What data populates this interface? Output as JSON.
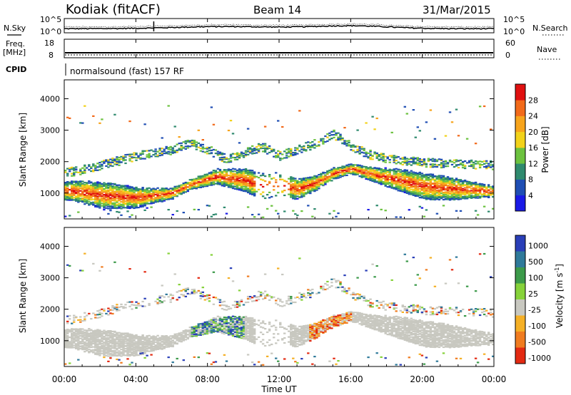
{
  "header": {
    "radar": "Kodiak (fitACF)",
    "beam": "Beam 14",
    "date": "31/Mar/2015"
  },
  "sky_panel": {
    "left_label": "N.Sky",
    "right_label": "N.Search",
    "left_ticks": [
      "10^5",
      "10^0"
    ],
    "right_ticks": [
      "10^5",
      "10^0"
    ]
  },
  "freq_panel": {
    "left_label_line1": "Freq.",
    "left_label_line2": "[MHz]",
    "right_label": "Nave",
    "left_ticks": [
      "18",
      "8"
    ],
    "right_ticks": [
      "60",
      "0"
    ]
  },
  "cpid_panel": {
    "label": "CPID",
    "text": "normalsound (fast) 157 RF"
  },
  "chart_data": [
    {
      "type": "heatmap",
      "title": "Power",
      "ylabel": "Slant Range [km]",
      "xlabel": "",
      "xlim": [
        "00:00",
        "24:00"
      ],
      "ylim": [
        180,
        4600
      ],
      "yticks": [
        1000,
        2000,
        3000,
        4000
      ],
      "colorbar": {
        "label": "Power [dB]",
        "ticks": [
          "4",
          "8",
          "12",
          "16",
          "20",
          "24",
          "28"
        ],
        "range": [
          0,
          32
        ],
        "colors": [
          "#1a1ae6",
          "#1f4eb4",
          "#2f8a6e",
          "#6cc23f",
          "#f2d21a",
          "#f7a41c",
          "#f26a1a",
          "#e01010"
        ]
      },
      "bands": [
        {
          "name": "main",
          "points": [
            [
              0.5,
              1100
            ],
            [
              2,
              960
            ],
            [
              4,
              880
            ],
            [
              6,
              1020
            ],
            [
              7,
              1300
            ],
            [
              8.5,
              1550
            ],
            [
              10,
              1450
            ],
            [
              11,
              1250
            ],
            [
              12,
              1300
            ],
            [
              13,
              1150
            ],
            [
              14,
              1350
            ],
            [
              15,
              1650
            ],
            [
              16,
              1800
            ],
            [
              17,
              1650
            ],
            [
              18,
              1520
            ],
            [
              19,
              1400
            ],
            [
              20,
              1250
            ],
            [
              22,
              1150
            ],
            [
              24,
              1080
            ]
          ]
        },
        {
          "name": "upper",
          "points": [
            [
              0.5,
              1700
            ],
            [
              2,
              1900
            ],
            [
              4,
              2200
            ],
            [
              6,
              2400
            ],
            [
              7,
              2600
            ],
            [
              8,
              2400
            ],
            [
              9,
              2100
            ],
            [
              10,
              2300
            ],
            [
              11,
              2500
            ],
            [
              12,
              2200
            ],
            [
              14,
              2600
            ],
            [
              15,
              2900
            ],
            [
              16,
              2500
            ],
            [
              17,
              2250
            ],
            [
              18,
              2100
            ],
            [
              20,
              2000
            ],
            [
              24,
              1900
            ]
          ]
        }
      ]
    },
    {
      "type": "heatmap",
      "title": "Velocity",
      "ylabel": "Slant Range [km]",
      "xlabel": "Time UT",
      "xlim": [
        "00:00",
        "24:00"
      ],
      "xticks": [
        "00:00",
        "04:00",
        "08:00",
        "12:00",
        "16:00",
        "20:00",
        "00:00"
      ],
      "ylim": [
        180,
        4600
      ],
      "yticks": [
        1000,
        2000,
        3000,
        4000
      ],
      "colorbar": {
        "label": "Velocity [m s^-1]",
        "ticks": [
          "1000",
          "500",
          "100",
          "25",
          "-25",
          "-100",
          "-500",
          "-1000"
        ],
        "colors": [
          "#2a3fb8",
          "#2f7a9a",
          "#3c9a4a",
          "#86d23a",
          "#c8c8c0",
          "#f5b026",
          "#f07c20",
          "#e32a12"
        ]
      },
      "regions": [
        {
          "name": "ground-scatter",
          "color": "gray",
          "range_km": [
            900,
            1800
          ]
        },
        {
          "name": "ionospheric-0700-1000",
          "color": "blue-green",
          "range_km": [
            1100,
            1600
          ]
        },
        {
          "name": "ionospheric-1400-1600",
          "color": "orange",
          "range_km": [
            1100,
            1700
          ]
        }
      ]
    }
  ]
}
